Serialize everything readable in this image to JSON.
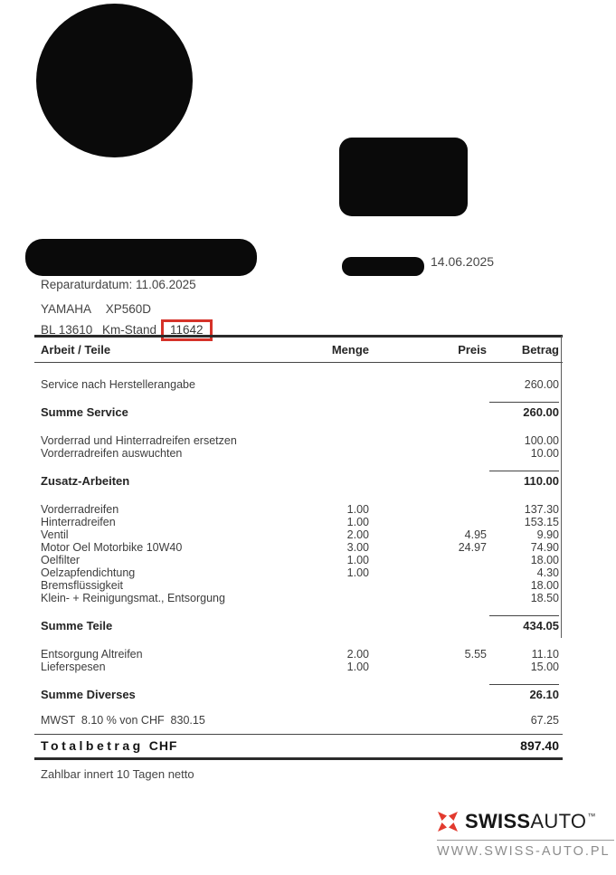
{
  "document": {
    "issue_date": "14.06.2025",
    "repair_date_line": "Reparaturdatum: 11.06.2025",
    "vehicle": {
      "make": "YAMAHA",
      "model": "XP560D",
      "plate": "BL 13610",
      "odometer_label": "Km-Stand",
      "odometer_value": "11642"
    },
    "payment_terms": "Zahlbar innert 10 Tagen netto"
  },
  "table": {
    "headers": {
      "work": "Arbeit / Teile",
      "qty": "Menge",
      "price": "Preis",
      "amount": "Betrag"
    },
    "sections": [
      {
        "items": [
          {
            "label": "Service nach Herstellerangabe",
            "qty": "",
            "price": "",
            "amount": "260.00"
          }
        ],
        "sum": {
          "label": "Summe Service",
          "amount": "260.00"
        }
      },
      {
        "items": [
          {
            "label": "Vorderrad und Hinterradreifen ersetzen",
            "qty": "",
            "price": "",
            "amount": "100.00"
          },
          {
            "label": "Vorderradreifen auswuchten",
            "qty": "",
            "price": "",
            "amount": "10.00"
          }
        ],
        "sum": {
          "label": "Zusatz-Arbeiten",
          "amount": "110.00"
        }
      },
      {
        "items": [
          {
            "label": "Vorderradreifen",
            "qty": "1.00",
            "price": "",
            "amount": "137.30"
          },
          {
            "label": "Hinterradreifen",
            "qty": "1.00",
            "price": "",
            "amount": "153.15"
          },
          {
            "label": "Ventil",
            "qty": "2.00",
            "price": "4.95",
            "amount": "9.90"
          },
          {
            "label": "Motor Oel Motorbike 10W40",
            "qty": "3.00",
            "price": "24.97",
            "amount": "74.90"
          },
          {
            "label": "Oelfilter",
            "qty": "1.00",
            "price": "",
            "amount": "18.00"
          },
          {
            "label": "Oelzapfendichtung",
            "qty": "1.00",
            "price": "",
            "amount": "4.30"
          },
          {
            "label": "Bremsflüssigkeit",
            "qty": "",
            "price": "",
            "amount": "18.00"
          },
          {
            "label": "Klein- + Reinigungsmat., Entsorgung",
            "qty": "",
            "price": "",
            "amount": "18.50"
          }
        ],
        "sum": {
          "label": "Summe Teile",
          "amount": "434.05"
        }
      },
      {
        "items": [
          {
            "label": "Entsorgung Altreifen",
            "qty": "2.00",
            "price": "5.55",
            "amount": "11.10"
          },
          {
            "label": "Lieferspesen",
            "qty": "1.00",
            "price": "",
            "amount": "15.00"
          }
        ],
        "sum": {
          "label": "Summe Diverses",
          "amount": "26.10"
        }
      }
    ],
    "vat": {
      "label": "MWST  8.10 % von CHF  830.15",
      "amount": "67.25"
    },
    "total": {
      "label": "Totalbetrag",
      "currency": "CHF",
      "amount": "897.40"
    }
  },
  "footer": {
    "brand_bold": "SWISS",
    "brand_regular": "AUTO",
    "trademark": "™",
    "website": "WWW.SWISS-AUTO.PL"
  },
  "colors": {
    "highlight_box_red": "#d53229",
    "brand_red": "#e23a2e",
    "redaction_black": "#0a0a0a"
  }
}
